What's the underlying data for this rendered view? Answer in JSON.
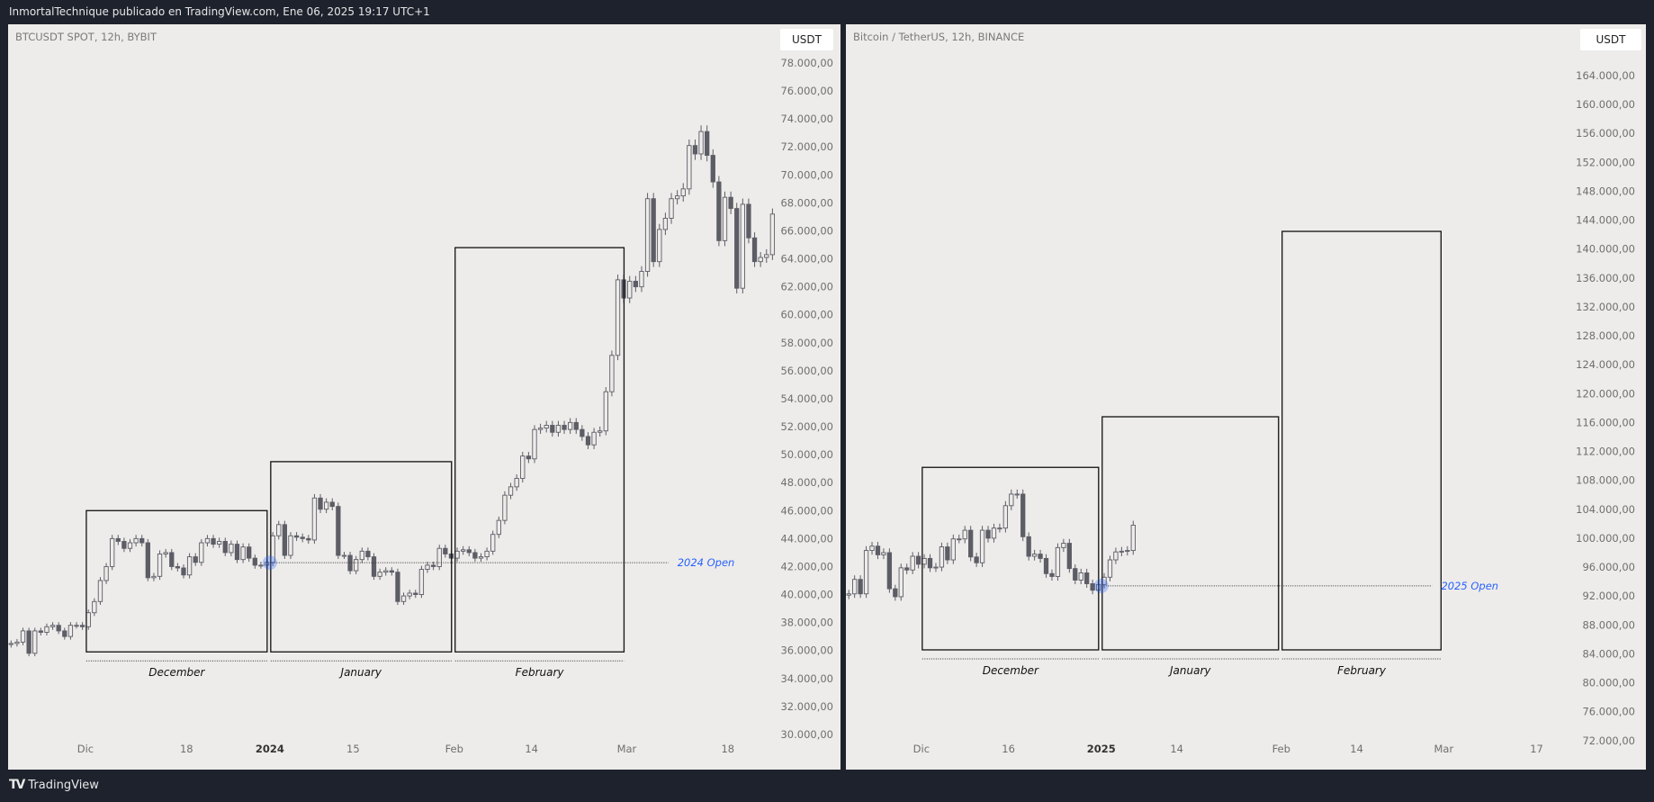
{
  "header": {
    "title": "InmortalTechnique publicado en TradingView.com, Ene 06, 2025 19:17 UTC+1"
  },
  "footer": {
    "brand": "TradingView"
  },
  "colors": {
    "background": "#1e222d",
    "panel": "#edecea",
    "candle": "#5d5d66",
    "open_line": "#2962ff"
  },
  "chart_data": [
    {
      "type": "candlestick",
      "symbol": "BTCUSDT SPOT, 12h, BYBIT",
      "currency_button": "USDT",
      "start_date": "2023-11-18",
      "ylim": [
        29000,
        80000
      ],
      "y_ticks": [
        78000,
        76000,
        74000,
        72000,
        70000,
        68000,
        66000,
        64000,
        62000,
        60000,
        58000,
        56000,
        54000,
        52000,
        50000,
        48000,
        46000,
        44000,
        42000,
        40000,
        38000,
        36000,
        34000,
        32000,
        30000
      ],
      "x_ticks": [
        {
          "label": "Dic",
          "date": "2023-12-01"
        },
        {
          "label": "18",
          "date": "2023-12-18"
        },
        {
          "label": "2024",
          "date": "2024-01-01",
          "bold": true
        },
        {
          "label": "15",
          "date": "2024-01-15"
        },
        {
          "label": "Feb",
          "date": "2024-02-01"
        },
        {
          "label": "14",
          "date": "2024-02-14"
        },
        {
          "label": "Mar",
          "date": "2024-03-01"
        },
        {
          "label": "18",
          "date": "2024-03-18"
        }
      ],
      "daily_closes": [
        36500,
        36600,
        37400,
        35800,
        37400,
        37300,
        37700,
        37800,
        37400,
        37000,
        37800,
        37800,
        37700,
        38700,
        39500,
        41000,
        42000,
        44000,
        43800,
        43300,
        43700,
        44000,
        43700,
        41200,
        41300,
        42900,
        43000,
        42000,
        41900,
        41400,
        42700,
        42300,
        43700,
        44000,
        43600,
        43800,
        43000,
        43600,
        42500,
        43400,
        42600,
        42100,
        42100,
        42300,
        44200,
        45000,
        42800,
        44200,
        44100,
        44000,
        43900,
        46900,
        46100,
        46600,
        46300,
        42800,
        42800,
        41700,
        42500,
        43100,
        42700,
        41300,
        41600,
        41700,
        41600,
        39500,
        39900,
        40100,
        40000,
        41800,
        42100,
        42000,
        43300,
        42900,
        42600,
        43100,
        43200,
        43000,
        42600,
        42700,
        43100,
        44300,
        45300,
        47100,
        47700,
        48300,
        49900,
        49700,
        51800,
        51900,
        52100,
        51600,
        52100,
        51800,
        52300,
        51800,
        51300,
        50700,
        51600,
        51700,
        54500,
        57100,
        62500,
        61200,
        62400,
        62000,
        63100,
        68300,
        63800,
        66100,
        66900,
        68300,
        68500,
        69000,
        72100,
        71500,
        73100,
        71400,
        69500,
        65300,
        68400,
        67600,
        61900,
        67900,
        65500,
        63800,
        64100,
        64300,
        67200
      ],
      "month_boxes": [
        {
          "label": "December",
          "start": "2023-12-01",
          "end": "2023-12-31",
          "high": 46000,
          "low": 35900
        },
        {
          "label": "January",
          "start": "2024-01-01",
          "end": "2024-01-31",
          "high": 49500,
          "low": 35900
        },
        {
          "label": "February",
          "start": "2024-02-01",
          "end": "2024-02-29",
          "high": 64800,
          "low": 35900
        }
      ],
      "year_open": {
        "label": "2024 Open",
        "price": 42280,
        "date": "2024-01-01",
        "line_end": "2024-03-08"
      }
    },
    {
      "type": "candlestick",
      "symbol": "Bitcoin / TetherUS, 12h, BINANCE",
      "currency_button": "USDT",
      "start_date": "2024-11-18",
      "ylim": [
        70000,
        166000
      ],
      "y_ticks": [
        164000,
        160000,
        156000,
        152000,
        148000,
        144000,
        140000,
        136000,
        132000,
        128000,
        124000,
        120000,
        116000,
        112000,
        108000,
        104000,
        100000,
        96000,
        92000,
        88000,
        84000,
        80000,
        76000,
        72000
      ],
      "x_ticks": [
        {
          "label": "Dic",
          "date": "2024-12-01"
        },
        {
          "label": "16",
          "date": "2024-12-16"
        },
        {
          "label": "2025",
          "date": "2025-01-01",
          "bold": true
        },
        {
          "label": "14",
          "date": "2025-01-14"
        },
        {
          "label": "Feb",
          "date": "2025-02-01"
        },
        {
          "label": "14",
          "date": "2025-02-14"
        },
        {
          "label": "Mar",
          "date": "2025-03-01"
        },
        {
          "label": "17",
          "date": "2025-03-17"
        }
      ],
      "daily_closes": [
        92300,
        94300,
        92300,
        98300,
        98900,
        97700,
        98000,
        93000,
        91900,
        95900,
        95600,
        97500,
        96400,
        97200,
        95900,
        96000,
        98800,
        97000,
        99900,
        99900,
        101100,
        97400,
        96600,
        101100,
        100000,
        101400,
        101400,
        104500,
        106100,
        106100,
        100200,
        97500,
        97800,
        97200,
        95100,
        94700,
        98700,
        99300,
        95800,
        94200,
        95200,
        93700,
        92800,
        93600,
        94600,
        97000,
        98100,
        98200,
        98300,
        101800
      ],
      "month_boxes": [
        {
          "label": "December",
          "start": "2024-12-01",
          "end": "2024-12-31",
          "high": 109800,
          "low": 84550
        },
        {
          "label": "January",
          "start": "2025-01-01",
          "end": "2025-01-31",
          "high": 116800,
          "low": 84550
        },
        {
          "label": "February",
          "start": "2025-02-01",
          "end": "2025-02-28",
          "high": 142450,
          "low": 84550
        }
      ],
      "year_open": {
        "label": "2025 Open",
        "price": 93400,
        "date": "2025-01-01",
        "line_end": "2025-02-27"
      }
    }
  ]
}
